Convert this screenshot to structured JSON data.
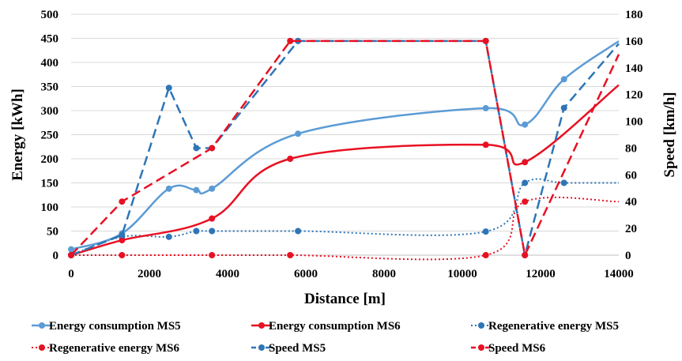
{
  "colors": {
    "blue": "#5B9BD5",
    "blue_dark": "#2E75B6",
    "red": "#E81123"
  },
  "chart_data": {
    "type": "line",
    "title": "",
    "xlabel": "Distance [m]",
    "ylabel_left": "Energy [kWh]",
    "ylabel_right": "Speed [km/h]",
    "xlim": [
      0,
      14000
    ],
    "ylim_left": [
      0,
      500
    ],
    "ylim_right": [
      0,
      180
    ],
    "x_ticks": [
      0,
      2000,
      4000,
      6000,
      8000,
      10000,
      12000,
      14000
    ],
    "y_left_ticks": [
      0,
      50,
      100,
      150,
      200,
      250,
      300,
      350,
      400,
      450,
      500
    ],
    "y_right_ticks": [
      0,
      20,
      40,
      60,
      80,
      100,
      120,
      140,
      160,
      180
    ],
    "grid": "horizontal",
    "legend": "bottom",
    "series": [
      {
        "name": "Energy consumption MS5",
        "axis": "left",
        "color": "#5B9BD5",
        "style": "solid",
        "marker": true,
        "smooth": true,
        "points": [
          [
            0,
            12
          ],
          [
            1300,
            45
          ],
          [
            2500,
            138
          ],
          [
            3200,
            135
          ],
          [
            3600,
            138
          ],
          [
            5800,
            252
          ],
          [
            10600,
            305
          ],
          [
            11600,
            271
          ],
          [
            12600,
            365
          ],
          [
            14000,
            444
          ]
        ],
        "marked": [
          true,
          true,
          true,
          true,
          true,
          true,
          true,
          true,
          true,
          false
        ]
      },
      {
        "name": "Energy consumption MS6",
        "axis": "left",
        "color": "#E81123",
        "style": "solid",
        "marker": true,
        "smooth": true,
        "points": [
          [
            0,
            0
          ],
          [
            1300,
            31
          ],
          [
            3600,
            76
          ],
          [
            5600,
            200
          ],
          [
            10600,
            229
          ],
          [
            11600,
            193
          ],
          [
            14000,
            353
          ]
        ],
        "marked": [
          true,
          true,
          true,
          true,
          true,
          true,
          false
        ]
      },
      {
        "name": "Regenerative energy MS5",
        "axis": "left",
        "color": "#2E75B6",
        "style": "dotted",
        "marker": true,
        "smooth": true,
        "points": [
          [
            0,
            0
          ],
          [
            1300,
            38
          ],
          [
            2500,
            38
          ],
          [
            3200,
            50
          ],
          [
            3600,
            50
          ],
          [
            5800,
            50
          ],
          [
            10600,
            49
          ],
          [
            11600,
            150
          ],
          [
            12600,
            150
          ],
          [
            14000,
            150
          ]
        ],
        "marked": [
          true,
          true,
          true,
          true,
          true,
          true,
          true,
          true,
          true,
          false
        ]
      },
      {
        "name": "Regenerative energy MS6",
        "axis": "left",
        "color": "#E81123",
        "style": "dotted",
        "marker": true,
        "smooth": true,
        "points": [
          [
            0,
            0
          ],
          [
            1300,
            0
          ],
          [
            3600,
            0
          ],
          [
            5600,
            0
          ],
          [
            10600,
            0
          ],
          [
            11600,
            111
          ],
          [
            14000,
            111
          ]
        ],
        "marked": [
          true,
          true,
          true,
          true,
          true,
          true,
          false
        ]
      },
      {
        "name": "Speed MS5",
        "axis": "right",
        "color": "#2E75B6",
        "style": "dashed",
        "marker": true,
        "smooth": false,
        "points": [
          [
            0,
            0
          ],
          [
            1300,
            15
          ],
          [
            2500,
            125
          ],
          [
            3200,
            80
          ],
          [
            3600,
            80
          ],
          [
            5800,
            160
          ],
          [
            10600,
            160
          ],
          [
            11600,
            0
          ],
          [
            12600,
            110
          ],
          [
            14000,
            158
          ]
        ],
        "marked": [
          true,
          true,
          true,
          true,
          true,
          true,
          true,
          true,
          true,
          false
        ]
      },
      {
        "name": "Speed MS6",
        "axis": "right",
        "color": "#E81123",
        "style": "dashed",
        "marker": true,
        "smooth": false,
        "points": [
          [
            0,
            0
          ],
          [
            1300,
            40
          ],
          [
            3600,
            80
          ],
          [
            5600,
            160
          ],
          [
            10600,
            160
          ],
          [
            11600,
            0
          ],
          [
            14000,
            150
          ]
        ],
        "marked": [
          true,
          true,
          true,
          true,
          true,
          true,
          false
        ]
      }
    ]
  }
}
